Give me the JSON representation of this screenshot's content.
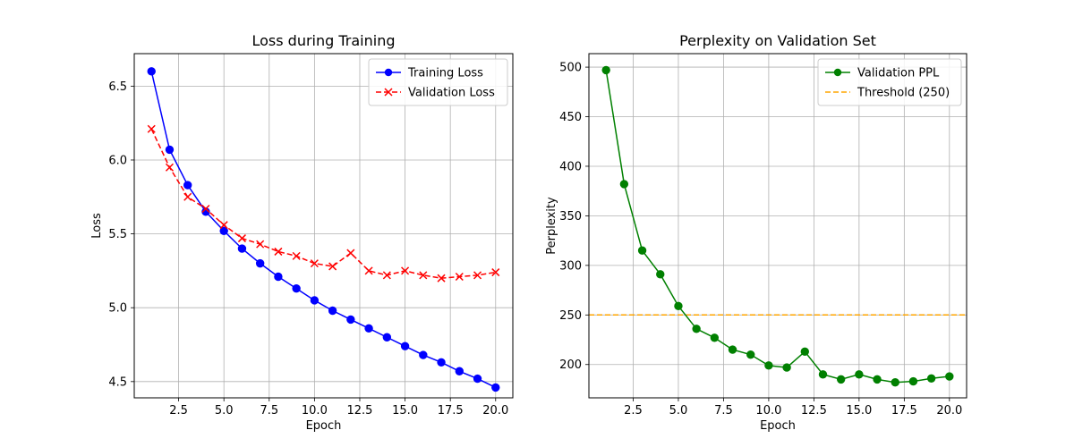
{
  "chart_data": [
    {
      "type": "line",
      "title": "Loss during Training",
      "xlabel": "Epoch",
      "ylabel": "Loss",
      "xlim": [
        0.05,
        20.95
      ],
      "ylim": [
        4.39,
        6.72
      ],
      "xticks": [
        2.5,
        5.0,
        7.5,
        10.0,
        12.5,
        15.0,
        17.5,
        20.0
      ],
      "xtick_labels": [
        "2.5",
        "5.0",
        "7.5",
        "10.0",
        "12.5",
        "15.0",
        "17.5",
        "20.0"
      ],
      "yticks": [
        4.5,
        5.0,
        5.5,
        6.0,
        6.5
      ],
      "ytick_labels": [
        "4.5",
        "5.0",
        "5.5",
        "6.0",
        "6.5"
      ],
      "grid": true,
      "legend_position": "top-right",
      "x": [
        1,
        2,
        3,
        4,
        5,
        6,
        7,
        8,
        9,
        10,
        11,
        12,
        13,
        14,
        15,
        16,
        17,
        18,
        19,
        20
      ],
      "series": [
        {
          "name": "Training Loss",
          "color": "#0000ff",
          "line_style": "solid",
          "marker": "circle",
          "values": [
            6.6,
            6.07,
            5.83,
            5.65,
            5.52,
            5.4,
            5.3,
            5.21,
            5.13,
            5.05,
            4.98,
            4.92,
            4.86,
            4.8,
            4.74,
            4.68,
            4.63,
            4.57,
            4.52,
            4.46
          ]
        },
        {
          "name": "Validation Loss",
          "color": "#ff0000",
          "line_style": "dashed",
          "marker": "x",
          "values": [
            6.21,
            5.95,
            5.75,
            5.67,
            5.56,
            5.47,
            5.43,
            5.38,
            5.35,
            5.3,
            5.28,
            5.37,
            5.25,
            5.22,
            5.25,
            5.22,
            5.2,
            5.21,
            5.22,
            5.24
          ]
        }
      ]
    },
    {
      "type": "line",
      "title": "Perplexity on Validation Set",
      "xlabel": "Epoch",
      "ylabel": "Perplexity",
      "xlim": [
        0.05,
        20.95
      ],
      "ylim": [
        166.4,
        513.6
      ],
      "xticks": [
        2.5,
        5.0,
        7.5,
        10.0,
        12.5,
        15.0,
        17.5,
        20.0
      ],
      "xtick_labels": [
        "2.5",
        "5.0",
        "7.5",
        "10.0",
        "12.5",
        "15.0",
        "17.5",
        "20.0"
      ],
      "yticks": [
        200,
        250,
        300,
        350,
        400,
        450,
        500
      ],
      "ytick_labels": [
        "200",
        "250",
        "300",
        "350",
        "400",
        "450",
        "500"
      ],
      "grid": true,
      "legend_position": "top-right",
      "x": [
        1,
        2,
        3,
        4,
        5,
        6,
        7,
        8,
        9,
        10,
        11,
        12,
        13,
        14,
        15,
        16,
        17,
        18,
        19,
        20
      ],
      "series": [
        {
          "name": "Validation PPL",
          "color": "#008000",
          "line_style": "solid",
          "marker": "circle",
          "values": [
            497,
            382,
            315,
            291,
            259,
            236,
            227,
            215,
            210,
            199,
            197,
            213,
            190,
            185,
            190,
            185,
            182,
            183,
            186,
            188
          ]
        }
      ],
      "reference_lines": [
        {
          "name": "Threshold (250)",
          "y": 250,
          "color": "#ffa500",
          "line_style": "dashed"
        }
      ]
    }
  ]
}
